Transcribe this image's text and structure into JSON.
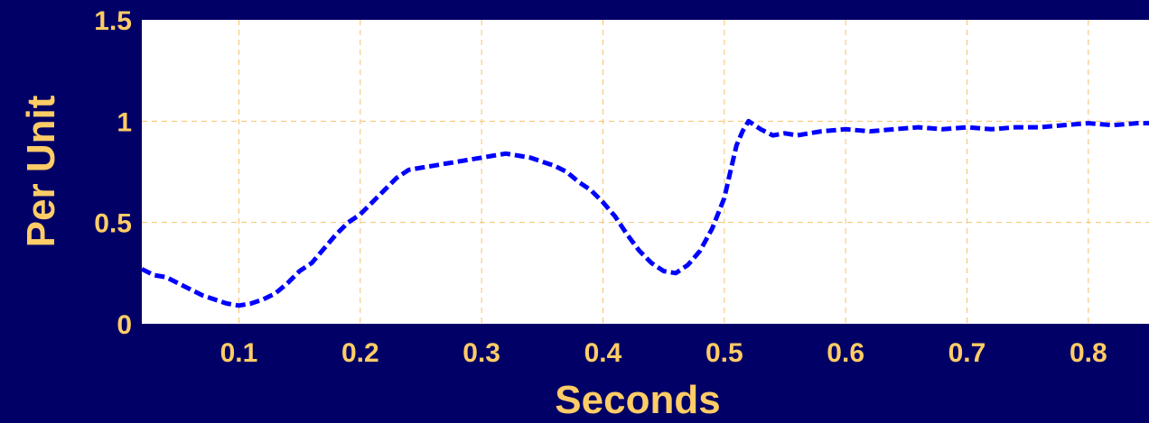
{
  "chart_data": {
    "type": "line",
    "title": "",
    "xlabel": "Seconds",
    "ylabel": "Per Unit",
    "xlim": [
      0.02,
      0.85
    ],
    "ylim": [
      0,
      1.5
    ],
    "xticks": [
      0.1,
      0.2,
      0.3,
      0.4,
      0.5,
      0.6,
      0.7,
      0.8
    ],
    "xtick_labels": [
      "0.1",
      "0.2",
      "0.3",
      "0.4",
      "0.5",
      "0.6",
      "0.7",
      "0.8"
    ],
    "yticks": [
      0,
      0.5,
      1,
      1.5
    ],
    "ytick_labels": [
      "0",
      "0.5",
      "1",
      "1.5"
    ],
    "grid": true,
    "colors": {
      "background": "#000066",
      "plot_area": "#FFFFFF",
      "text": "#FFCC66",
      "grid": "#F5C26B",
      "line": "#0000FF"
    },
    "series": [
      {
        "line_style": "dashed",
        "x": [
          0.02,
          0.03,
          0.04,
          0.05,
          0.06,
          0.07,
          0.08,
          0.09,
          0.1,
          0.11,
          0.12,
          0.13,
          0.14,
          0.15,
          0.16,
          0.17,
          0.18,
          0.19,
          0.2,
          0.21,
          0.22,
          0.23,
          0.24,
          0.25,
          0.26,
          0.27,
          0.28,
          0.29,
          0.3,
          0.31,
          0.32,
          0.33,
          0.34,
          0.35,
          0.36,
          0.37,
          0.38,
          0.39,
          0.4,
          0.41,
          0.42,
          0.43,
          0.44,
          0.45,
          0.46,
          0.47,
          0.48,
          0.49,
          0.5,
          0.505,
          0.51,
          0.515,
          0.52,
          0.53,
          0.54,
          0.55,
          0.56,
          0.57,
          0.58,
          0.6,
          0.62,
          0.64,
          0.66,
          0.68,
          0.7,
          0.72,
          0.74,
          0.76,
          0.78,
          0.8,
          0.82,
          0.84,
          0.85
        ],
        "y": [
          0.27,
          0.24,
          0.23,
          0.2,
          0.17,
          0.14,
          0.12,
          0.1,
          0.09,
          0.1,
          0.12,
          0.15,
          0.2,
          0.26,
          0.3,
          0.37,
          0.44,
          0.5,
          0.54,
          0.6,
          0.66,
          0.72,
          0.76,
          0.77,
          0.78,
          0.79,
          0.8,
          0.81,
          0.82,
          0.83,
          0.84,
          0.83,
          0.82,
          0.8,
          0.78,
          0.75,
          0.7,
          0.66,
          0.6,
          0.53,
          0.44,
          0.36,
          0.3,
          0.26,
          0.25,
          0.29,
          0.36,
          0.47,
          0.62,
          0.75,
          0.88,
          0.95,
          1.0,
          0.96,
          0.93,
          0.94,
          0.93,
          0.94,
          0.95,
          0.96,
          0.95,
          0.96,
          0.97,
          0.96,
          0.97,
          0.96,
          0.97,
          0.97,
          0.98,
          0.99,
          0.98,
          0.99,
          0.99
        ]
      }
    ]
  }
}
